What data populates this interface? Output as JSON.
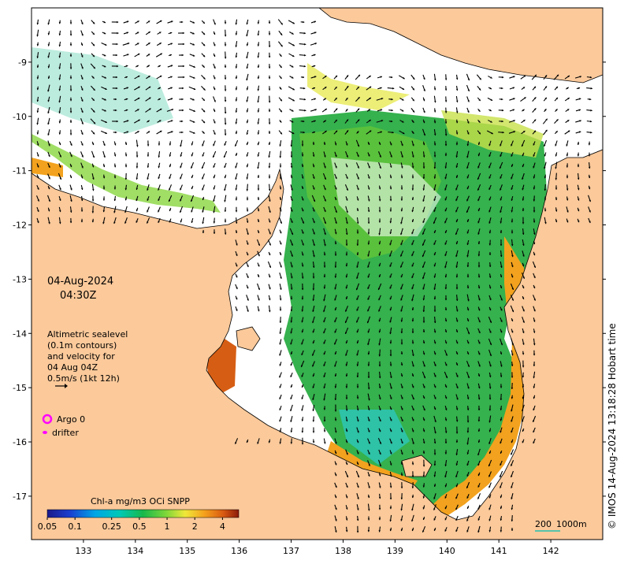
{
  "map": {
    "date": "04-Aug-2024",
    "time": "04:30Z",
    "altimetry_lines": [
      "Altimetric sealevel",
      "(0.1m contours)",
      "and velocity for",
      "04 Aug 04Z",
      "0.5m/s (1kt 12h)"
    ],
    "legend": {
      "argo_label": "Argo 0",
      "drifter_label": "drifter",
      "argo_color": "#ff00ff",
      "drifter_color": "#ff00ff"
    },
    "colorbar": {
      "title": "Chl-a mg/m3 OCi SNPP",
      "ticks": [
        "0.05",
        "0.1",
        "0.25",
        "0.5",
        "1",
        "2",
        "4"
      ],
      "tick_values": [
        0.05,
        0.1,
        0.25,
        0.5,
        1,
        2,
        4
      ],
      "range": [
        0.05,
        6
      ]
    },
    "scale_bar": {
      "label": "200",
      "depth_label": "1000m",
      "color": "#20c0b0"
    },
    "credit": "© IMOS 14-Aug-2024 13:18:28 Hobart time",
    "x_ticks": [
      133,
      134,
      135,
      136,
      137,
      138,
      139,
      140,
      141,
      142
    ],
    "y_ticks": [
      -9,
      -10,
      -11,
      -12,
      -13,
      -14,
      -15,
      -16,
      -17
    ],
    "lon_range": [
      132.0,
      143.0
    ],
    "lat_range": [
      -8.0,
      -17.8
    ],
    "colors": {
      "land": "#fbc99a",
      "sea": "#ffffff",
      "arrow": "#000000"
    }
  }
}
